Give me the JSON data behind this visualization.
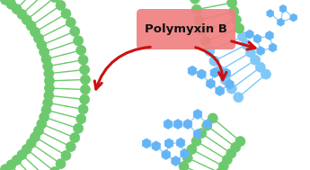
{
  "title": "Polymyxin B",
  "title_box_color": "#F08080",
  "title_text_color": "#111111",
  "background_color": "#ffffff",
  "membrane_color": "#6DC96D",
  "membrane_outline_color": "#2e7d2e",
  "membrane_tail_color": "#ffffff",
  "polymyxin_color": "#64B5F6",
  "polymyxin_outline_color": "#3a85c0",
  "polymyxin_line_color": "#80c8f8",
  "arrow_color": "#cc1111",
  "figsize": [
    3.45,
    1.89
  ],
  "dpi": 100
}
